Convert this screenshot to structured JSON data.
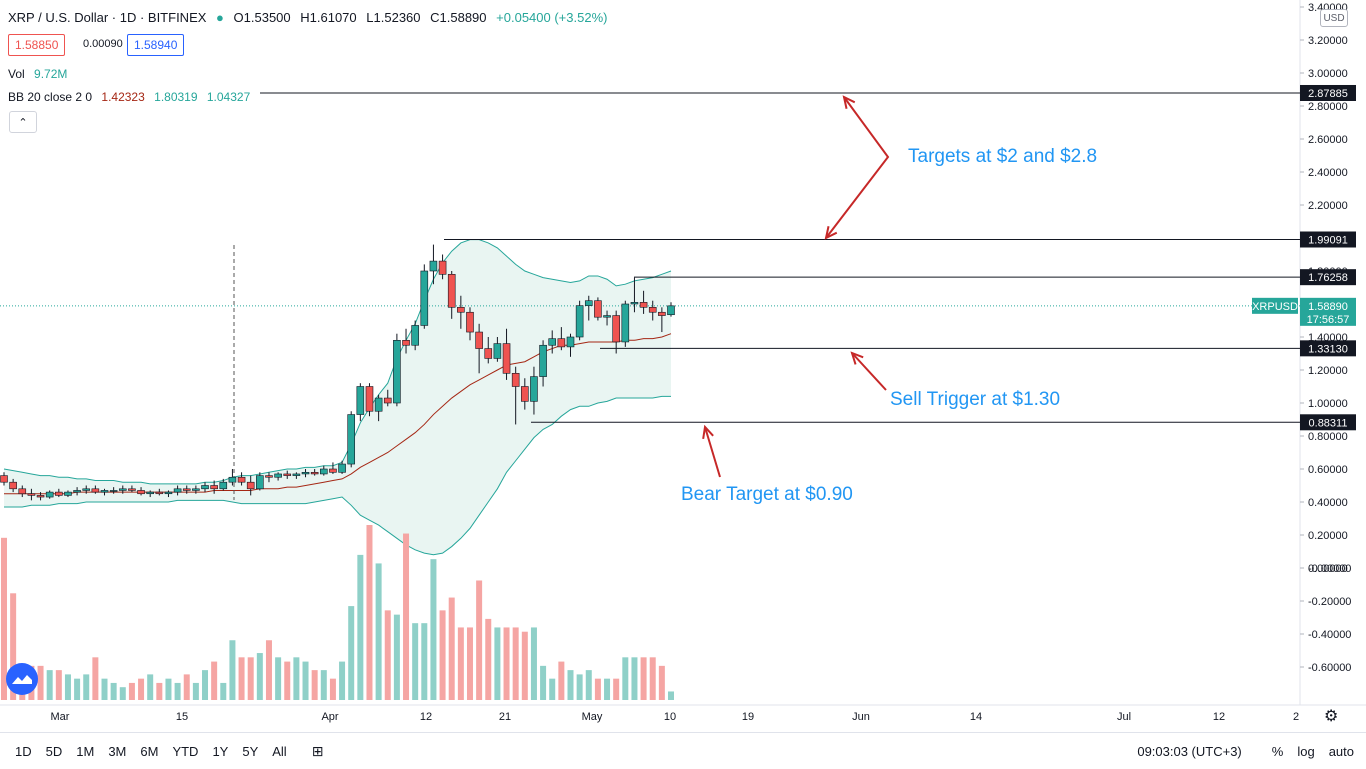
{
  "header": {
    "symbol": "XRP / U.S. Dollar · 1D · BITFINEX",
    "open": "O1.53500",
    "high": "H1.61070",
    "low": "L1.52360",
    "close": "C1.58890",
    "change": "+0.05400 (+3.52%)",
    "bid": "1.58850",
    "spread": "0.00090",
    "ask": "1.58940",
    "vol_label": "Vol",
    "vol_value": "9.72M",
    "bb_label": "BB 20 close 2 0",
    "bb_basis": "1.42323",
    "bb_upper": "1.80319",
    "bb_lower": "1.04327",
    "collapse_glyph": "⌃",
    "currency_button": "USD"
  },
  "colors": {
    "up": "#26a69a",
    "down": "#ef5350",
    "vol_up": "#8fd0c8",
    "vol_down": "#f5a5a3",
    "annotation_text": "#2196f3",
    "arrow": "#c62828",
    "band_fill": "#e9f5f2",
    "basis": "#a52714"
  },
  "chart_data": {
    "type": "candlestick",
    "y_ticks": [
      "3.40000",
      "3.20000",
      "3.00000",
      "2.80000",
      "2.60000",
      "2.40000",
      "2.20000",
      "2.00000",
      "1.80000",
      "1.60000",
      "1.40000",
      "1.20000",
      "1.00000",
      "0.80000",
      "0.60000",
      "0.40000",
      "0.20000",
      "0.00000",
      "-0.00000",
      "-0.20000",
      "-0.40000",
      "-0.60000"
    ],
    "x_ticks": [
      "Mar",
      "15",
      "Apr",
      "12",
      "21",
      "May",
      "10",
      "19",
      "Jun",
      "14",
      "Jul",
      "12",
      "2"
    ],
    "ylim": [
      -0.8,
      3.4
    ],
    "ohlc": [
      [
        0.56,
        0.58,
        0.5,
        0.52
      ],
      [
        0.52,
        0.54,
        0.46,
        0.48
      ],
      [
        0.48,
        0.5,
        0.43,
        0.45
      ],
      [
        0.45,
        0.48,
        0.41,
        0.44
      ],
      [
        0.44,
        0.46,
        0.41,
        0.43
      ],
      [
        0.43,
        0.47,
        0.42,
        0.46
      ],
      [
        0.46,
        0.48,
        0.43,
        0.44
      ],
      [
        0.44,
        0.47,
        0.43,
        0.46
      ],
      [
        0.46,
        0.49,
        0.44,
        0.47
      ],
      [
        0.47,
        0.5,
        0.45,
        0.48
      ],
      [
        0.48,
        0.5,
        0.45,
        0.46
      ],
      [
        0.46,
        0.48,
        0.44,
        0.47
      ],
      [
        0.47,
        0.49,
        0.45,
        0.47
      ],
      [
        0.47,
        0.5,
        0.45,
        0.48
      ],
      [
        0.48,
        0.5,
        0.46,
        0.47
      ],
      [
        0.47,
        0.49,
        0.44,
        0.45
      ],
      [
        0.45,
        0.47,
        0.43,
        0.46
      ],
      [
        0.46,
        0.48,
        0.44,
        0.45
      ],
      [
        0.45,
        0.47,
        0.43,
        0.46
      ],
      [
        0.46,
        0.5,
        0.44,
        0.48
      ],
      [
        0.48,
        0.5,
        0.45,
        0.47
      ],
      [
        0.47,
        0.5,
        0.45,
        0.48
      ],
      [
        0.48,
        0.52,
        0.46,
        0.5
      ],
      [
        0.5,
        0.53,
        0.45,
        0.48
      ],
      [
        0.48,
        0.54,
        0.47,
        0.52
      ],
      [
        0.52,
        0.6,
        0.5,
        0.55
      ],
      [
        0.55,
        0.58,
        0.5,
        0.52
      ],
      [
        0.52,
        0.56,
        0.44,
        0.48
      ],
      [
        0.48,
        0.58,
        0.47,
        0.56
      ],
      [
        0.56,
        0.58,
        0.52,
        0.55
      ],
      [
        0.55,
        0.58,
        0.53,
        0.57
      ],
      [
        0.57,
        0.59,
        0.54,
        0.56
      ],
      [
        0.56,
        0.58,
        0.54,
        0.57
      ],
      [
        0.57,
        0.6,
        0.55,
        0.58
      ],
      [
        0.58,
        0.6,
        0.56,
        0.57
      ],
      [
        0.57,
        0.62,
        0.56,
        0.6
      ],
      [
        0.6,
        0.64,
        0.57,
        0.58
      ],
      [
        0.58,
        0.65,
        0.57,
        0.63
      ],
      [
        0.63,
        0.95,
        0.61,
        0.93
      ],
      [
        0.93,
        1.12,
        0.89,
        1.1
      ],
      [
        1.1,
        1.12,
        0.92,
        0.95
      ],
      [
        0.95,
        1.05,
        0.89,
        1.03
      ],
      [
        1.03,
        1.08,
        0.98,
        1.0
      ],
      [
        1.0,
        1.42,
        0.98,
        1.38
      ],
      [
        1.38,
        1.45,
        1.3,
        1.35
      ],
      [
        1.35,
        1.5,
        1.32,
        1.47
      ],
      [
        1.47,
        1.84,
        1.45,
        1.8
      ],
      [
        1.8,
        1.96,
        1.72,
        1.86
      ],
      [
        1.86,
        1.9,
        1.75,
        1.78
      ],
      [
        1.78,
        1.8,
        1.51,
        1.58
      ],
      [
        1.58,
        1.65,
        1.45,
        1.55
      ],
      [
        1.55,
        1.58,
        1.38,
        1.43
      ],
      [
        1.43,
        1.48,
        1.18,
        1.33
      ],
      [
        1.33,
        1.4,
        1.24,
        1.27
      ],
      [
        1.27,
        1.4,
        1.25,
        1.36
      ],
      [
        1.36,
        1.45,
        1.14,
        1.18
      ],
      [
        1.18,
        1.22,
        0.87,
        1.1
      ],
      [
        1.1,
        1.15,
        0.96,
        1.01
      ],
      [
        1.01,
        1.22,
        0.93,
        1.16
      ],
      [
        1.16,
        1.38,
        1.1,
        1.35
      ],
      [
        1.35,
        1.44,
        1.3,
        1.39
      ],
      [
        1.39,
        1.46,
        1.32,
        1.34
      ],
      [
        1.34,
        1.42,
        1.28,
        1.4
      ],
      [
        1.4,
        1.62,
        1.38,
        1.59
      ],
      [
        1.59,
        1.65,
        1.5,
        1.62
      ],
      [
        1.62,
        1.64,
        1.5,
        1.52
      ],
      [
        1.52,
        1.56,
        1.47,
        1.53
      ],
      [
        1.53,
        1.56,
        1.3,
        1.37
      ],
      [
        1.37,
        1.62,
        1.34,
        1.6
      ],
      [
        1.6,
        1.76,
        1.55,
        1.61
      ],
      [
        1.61,
        1.68,
        1.54,
        1.58
      ],
      [
        1.58,
        1.62,
        1.5,
        1.55
      ],
      [
        1.55,
        1.58,
        1.43,
        1.53
      ],
      [
        1.535,
        1.6107,
        1.5236,
        1.5889
      ]
    ],
    "bb_upper": [
      0.6,
      0.59,
      0.58,
      0.57,
      0.56,
      0.56,
      0.55,
      0.55,
      0.54,
      0.54,
      0.53,
      0.53,
      0.53,
      0.52,
      0.52,
      0.52,
      0.51,
      0.51,
      0.51,
      0.51,
      0.51,
      0.51,
      0.52,
      0.52,
      0.53,
      0.55,
      0.56,
      0.56,
      0.57,
      0.58,
      0.59,
      0.6,
      0.6,
      0.61,
      0.61,
      0.62,
      0.62,
      0.64,
      0.75,
      0.88,
      0.97,
      1.05,
      1.12,
      1.27,
      1.38,
      1.48,
      1.62,
      1.75,
      1.85,
      1.92,
      1.97,
      1.99,
      1.99,
      1.97,
      1.94,
      1.89,
      1.84,
      1.8,
      1.78,
      1.76,
      1.75,
      1.74,
      1.73,
      1.74,
      1.77,
      1.77,
      1.75,
      1.71,
      1.72,
      1.74,
      1.75,
      1.76,
      1.78,
      1.8
    ],
    "bb_basis": [
      0.45,
      0.45,
      0.45,
      0.45,
      0.45,
      0.45,
      0.45,
      0.45,
      0.46,
      0.46,
      0.46,
      0.46,
      0.46,
      0.46,
      0.46,
      0.46,
      0.46,
      0.46,
      0.46,
      0.46,
      0.46,
      0.46,
      0.46,
      0.47,
      0.47,
      0.47,
      0.47,
      0.47,
      0.48,
      0.48,
      0.48,
      0.49,
      0.49,
      0.5,
      0.51,
      0.52,
      0.53,
      0.54,
      0.57,
      0.61,
      0.64,
      0.67,
      0.7,
      0.74,
      0.78,
      0.82,
      0.87,
      0.93,
      0.98,
      1.03,
      1.07,
      1.11,
      1.14,
      1.17,
      1.2,
      1.23,
      1.24,
      1.25,
      1.28,
      1.31,
      1.33,
      1.35,
      1.35,
      1.36,
      1.37,
      1.37,
      1.37,
      1.37,
      1.38,
      1.38,
      1.39,
      1.39,
      1.4,
      1.42
    ],
    "bb_lower": [
      0.37,
      0.37,
      0.37,
      0.38,
      0.38,
      0.38,
      0.39,
      0.39,
      0.39,
      0.4,
      0.4,
      0.4,
      0.4,
      0.4,
      0.4,
      0.4,
      0.4,
      0.4,
      0.4,
      0.41,
      0.41,
      0.41,
      0.41,
      0.41,
      0.41,
      0.4,
      0.39,
      0.39,
      0.39,
      0.39,
      0.39,
      0.39,
      0.39,
      0.39,
      0.4,
      0.41,
      0.42,
      0.43,
      0.38,
      0.32,
      0.29,
      0.26,
      0.22,
      0.18,
      0.14,
      0.11,
      0.09,
      0.08,
      0.09,
      0.13,
      0.18,
      0.24,
      0.32,
      0.4,
      0.48,
      0.58,
      0.65,
      0.72,
      0.79,
      0.84,
      0.87,
      0.92,
      0.96,
      0.98,
      0.98,
      1.0,
      1.01,
      1.03,
      1.03,
      1.03,
      1.03,
      1.03,
      1.04,
      1.04
    ],
    "volume": [
      0.38,
      0.25,
      0.08,
      0.08,
      0.08,
      0.07,
      0.07,
      0.06,
      0.05,
      0.06,
      0.1,
      0.05,
      0.04,
      0.03,
      0.04,
      0.05,
      0.06,
      0.04,
      0.05,
      0.04,
      0.06,
      0.04,
      0.07,
      0.09,
      0.04,
      0.14,
      0.1,
      0.1,
      0.11,
      0.14,
      0.1,
      0.09,
      0.1,
      0.09,
      0.07,
      0.07,
      0.05,
      0.09,
      0.22,
      0.34,
      0.41,
      0.32,
      0.21,
      0.2,
      0.39,
      0.18,
      0.18,
      0.33,
      0.21,
      0.24,
      0.17,
      0.17,
      0.28,
      0.19,
      0.17,
      0.17,
      0.17,
      0.16,
      0.17,
      0.08,
      0.05,
      0.09,
      0.07,
      0.06,
      0.07,
      0.05,
      0.05,
      0.05,
      0.1,
      0.1,
      0.1,
      0.1,
      0.08,
      0.02
    ],
    "horizontal_lines": [
      {
        "label": "2.87885",
        "value": 2.87885
      },
      {
        "label": "1.99091",
        "value": 1.99091
      },
      {
        "label": "1.76258",
        "value": 1.76258
      },
      {
        "label": "1.33130",
        "value": 1.3313
      },
      {
        "label": "0.88311",
        "value": 0.88311
      }
    ],
    "last_price": {
      "symbol": "XRPUSD",
      "value": "1.58890",
      "countdown": "17:56:57",
      "level": 1.5889
    },
    "annotations": [
      {
        "text": "Targets at $2 and $2.8"
      },
      {
        "text": "Sell Trigger at $1.30"
      },
      {
        "text": "Bear Target at $0.90"
      }
    ]
  },
  "bottom": {
    "timeframes": [
      "1D",
      "5D",
      "1M",
      "3M",
      "6M",
      "YTD",
      "1Y",
      "5Y",
      "All"
    ],
    "clock": "09:03:03 (UTC+3)",
    "percent": "%",
    "log": "log",
    "auto": "auto"
  }
}
